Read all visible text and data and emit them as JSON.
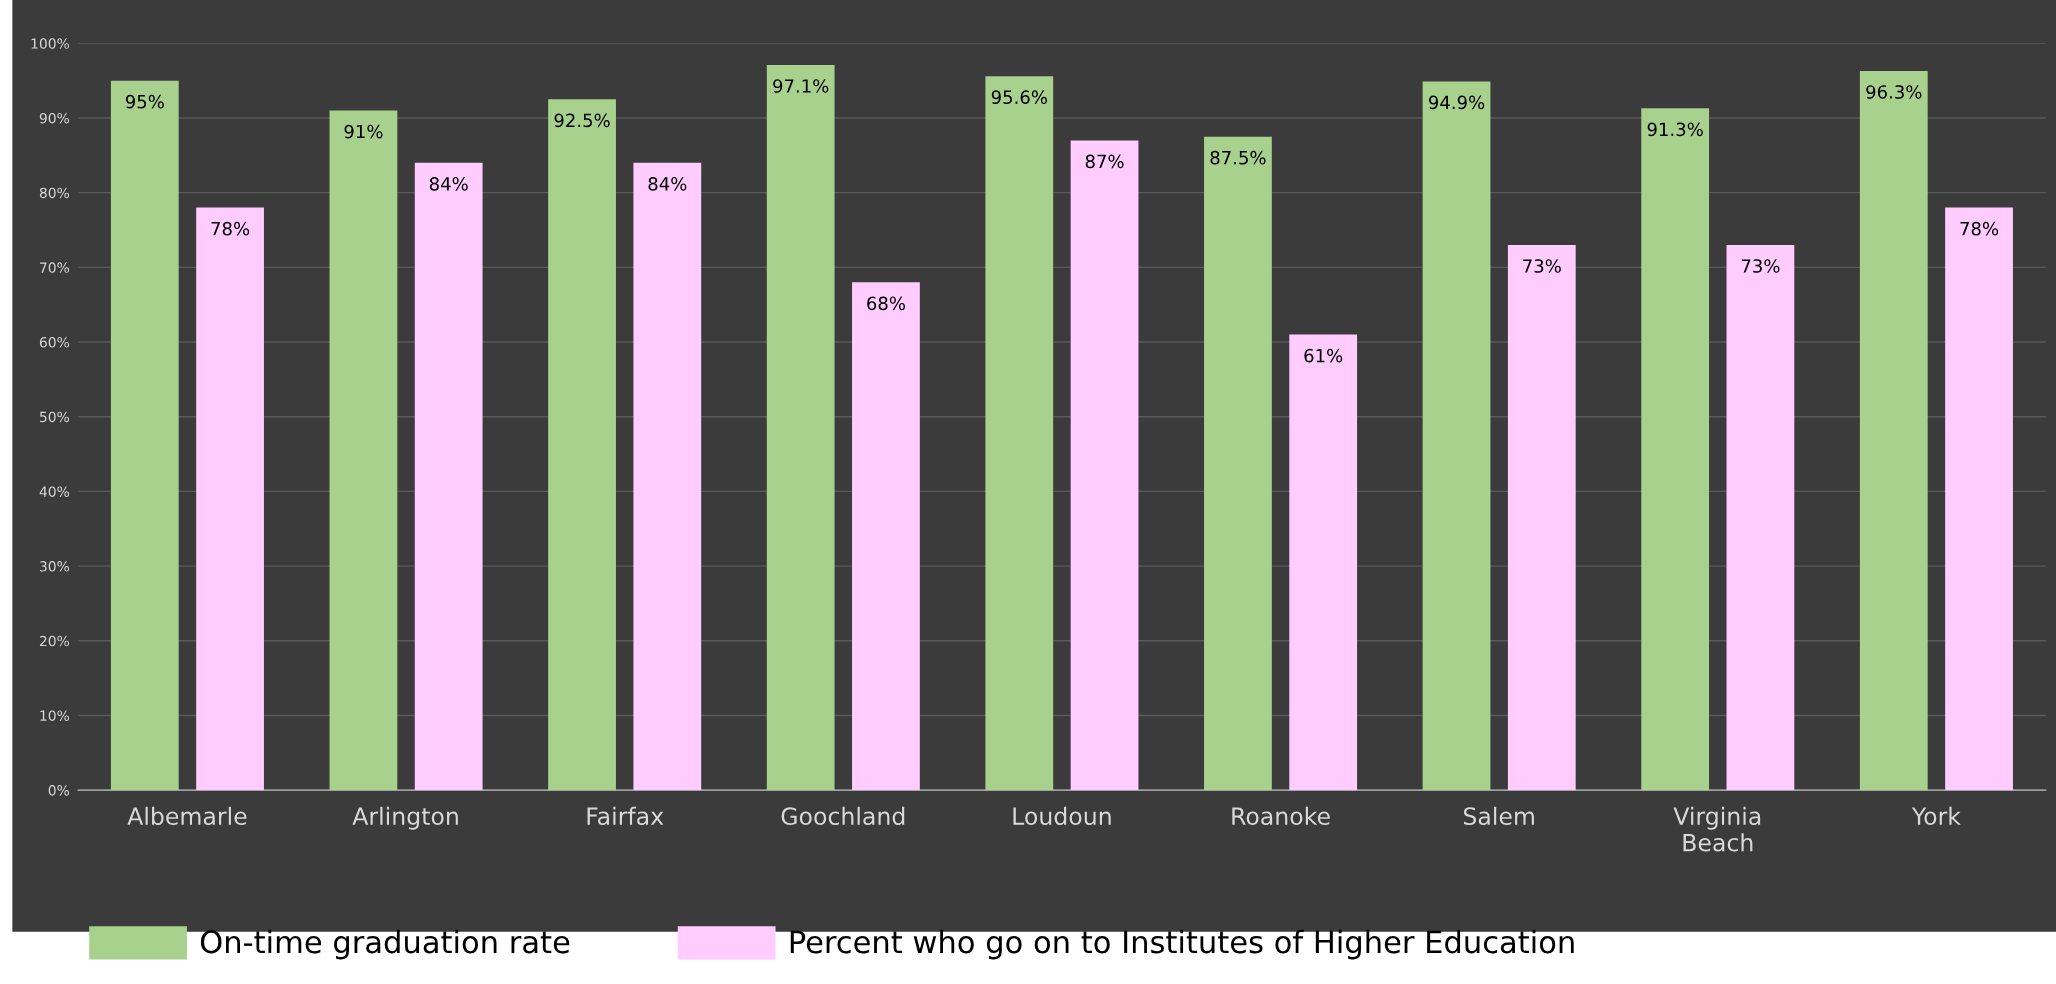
{
  "chart_data": {
    "type": "bar",
    "categories": [
      "Albemarle",
      "Arlington",
      "Fairfax",
      "Goochland",
      "Loudoun",
      "Roanoke",
      "Salem",
      "Virginia\nBeach",
      "York"
    ],
    "series": [
      {
        "name": "On-time graduation rate",
        "color": "#a9d18e",
        "values": [
          95,
          91,
          92.5,
          97.1,
          95.6,
          87.5,
          94.9,
          91.3,
          96.3
        ],
        "value_labels": [
          "95%",
          "91%",
          "92.5%",
          "97.1%",
          "95.6%",
          "87.5%",
          "94.9%",
          "91.3%",
          "96.3%"
        ]
      },
      {
        "name": "Percent who go on to Institutes of Higher Education",
        "color": "#ffccff",
        "values": [
          78,
          84,
          84,
          68,
          87,
          61,
          73,
          73,
          78
        ],
        "value_labels": [
          "78%",
          "84%",
          "84%",
          "68%",
          "87%",
          "61%",
          "73%",
          "73%",
          "78%"
        ]
      }
    ],
    "ylim": [
      0,
      100
    ],
    "yticks": [
      {
        "value": 0,
        "label": "0%"
      },
      {
        "value": 10,
        "label": "10%"
      },
      {
        "value": 20,
        "label": "20%"
      },
      {
        "value": 30,
        "label": "30%"
      },
      {
        "value": 40,
        "label": "40%"
      },
      {
        "value": 50,
        "label": "50%"
      },
      {
        "value": 60,
        "label": "60%"
      },
      {
        "value": 70,
        "label": "70%"
      },
      {
        "value": 80,
        "label": "80%"
      },
      {
        "value": 90,
        "label": "90%"
      },
      {
        "value": 100,
        "label": "100%"
      }
    ],
    "grid": "y",
    "legend": "bottom"
  }
}
